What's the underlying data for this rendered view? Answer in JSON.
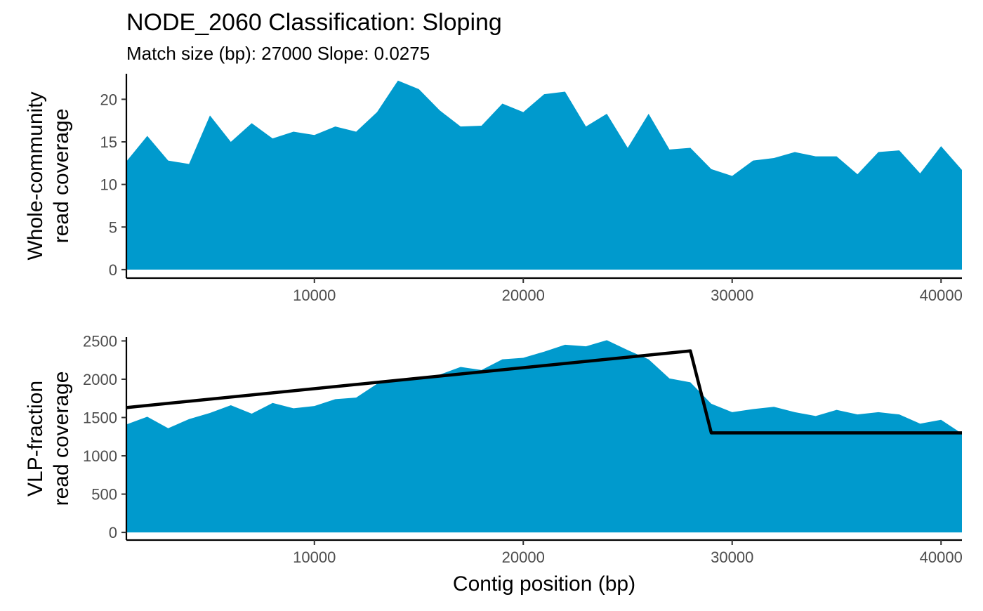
{
  "chart_data": {
    "type": "area",
    "title": "NODE_2060 Classification: Sloping",
    "subtitle": "Match size (bp): 27000 Slope: 0.0275",
    "xlabel": "Contig position (bp)",
    "fill_color": "#009ACD",
    "line_color": "#000000",
    "grid": false,
    "panels": [
      {
        "ylabel": "Whole-community read coverage",
        "ylabel_lines": [
          "Whole-community",
          "read coverage"
        ],
        "xlim": [
          1000,
          41000
        ],
        "ylim": [
          -1,
          23
        ],
        "x_ticks": [
          10000,
          20000,
          30000,
          40000
        ],
        "x_tick_labels": [
          "10000",
          "20000",
          "30000",
          "40000"
        ],
        "y_ticks": [
          0,
          5,
          10,
          15,
          20
        ],
        "y_tick_labels": [
          "0",
          "5",
          "10",
          "15",
          "20"
        ],
        "series": [
          {
            "x": [
              1000,
              2000,
              3000,
              4000,
              5000,
              6000,
              7000,
              8000,
              9000,
              10000,
              11000,
              12000,
              13000,
              14000,
              15000,
              16000,
              17000,
              18000,
              19000,
              20000,
              21000,
              22000,
              23000,
              24000,
              25000,
              26000,
              27000,
              28000,
              29000,
              30000,
              31000,
              32000,
              33000,
              34000,
              35000,
              36000,
              37000,
              38000,
              39000,
              40000,
              41000
            ],
            "values": [
              12.7,
              15.7,
              12.8,
              12.4,
              18.1,
              15.0,
              17.2,
              15.4,
              16.2,
              15.8,
              16.8,
              16.2,
              18.5,
              22.2,
              21.2,
              18.7,
              16.8,
              16.9,
              19.5,
              18.5,
              20.6,
              20.9,
              16.8,
              18.3,
              14.3,
              18.3,
              14.1,
              14.3,
              11.8,
              11.0,
              12.8,
              13.1,
              13.8,
              13.3,
              13.3,
              11.2,
              13.8,
              14.0,
              11.3,
              14.5,
              11.7
            ]
          }
        ]
      },
      {
        "ylabel": "VLP-fraction read coverage",
        "ylabel_lines": [
          "VLP-fraction",
          "read coverage"
        ],
        "xlim": [
          1000,
          41000
        ],
        "ylim": [
          -100,
          2550
        ],
        "x_ticks": [
          10000,
          20000,
          30000,
          40000
        ],
        "x_tick_labels": [
          "10000",
          "20000",
          "30000",
          "40000"
        ],
        "y_ticks": [
          0,
          500,
          1000,
          1500,
          2000,
          2500
        ],
        "y_tick_labels": [
          "0",
          "500",
          "1000",
          "1500",
          "2000",
          "2500"
        ],
        "series": [
          {
            "x": [
              1000,
              2000,
              3000,
              4000,
              5000,
              6000,
              7000,
              8000,
              9000,
              10000,
              11000,
              12000,
              13000,
              14000,
              15000,
              16000,
              17000,
              18000,
              19000,
              20000,
              21000,
              22000,
              23000,
              24000,
              25000,
              26000,
              27000,
              28000,
              29000,
              30000,
              31000,
              32000,
              33000,
              34000,
              35000,
              36000,
              37000,
              38000,
              39000,
              40000,
              41000
            ],
            "values": [
              1410,
              1510,
              1360,
              1480,
              1560,
              1660,
              1550,
              1690,
              1620,
              1650,
              1740,
              1760,
              1940,
              1980,
              2000,
              2060,
              2160,
              2120,
              2260,
              2280,
              2360,
              2450,
              2430,
              2510,
              2380,
              2260,
              2010,
              1960,
              1680,
              1570,
              1610,
              1640,
              1570,
              1520,
              1600,
              1540,
              1570,
              1540,
              1420,
              1470,
              1290
            ]
          }
        ],
        "fit_line": {
          "x": [
            1000,
            28000,
            29000,
            41000
          ],
          "y": [
            1630,
            2370,
            1300,
            1300
          ]
        }
      }
    ]
  }
}
